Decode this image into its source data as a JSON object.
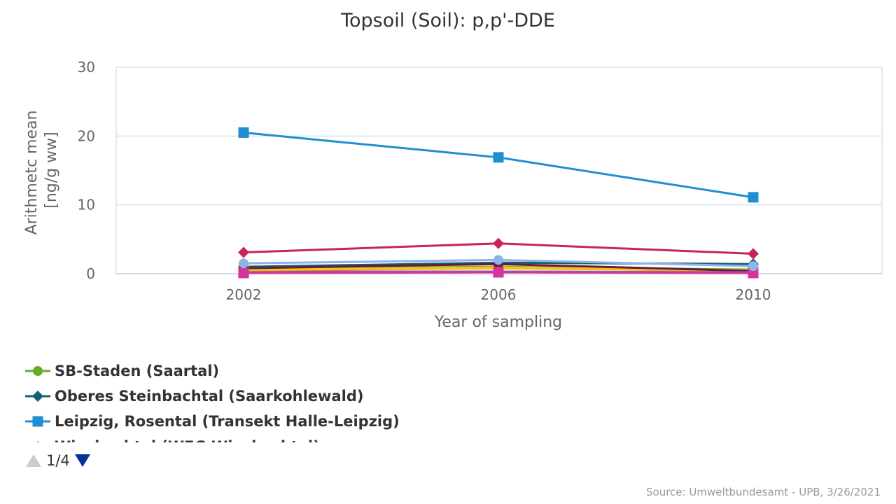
{
  "chart_data": {
    "type": "line",
    "title": "Topsoil (Soil): p,p'-DDE",
    "xlabel": "Year of sampling",
    "ylabel": [
      "Arithmetc mean",
      "[ng/g ww]"
    ],
    "x": [
      "2002",
      "2006",
      "2010"
    ],
    "yticks": [
      "0",
      "10",
      "20",
      "30"
    ],
    "ylim": [
      0,
      30
    ],
    "grid": true,
    "legend_placement": "bottom-left",
    "series": [
      {
        "name": "SB-Staden (Saartal)",
        "color": "#6aaa2a",
        "marker": "circle",
        "values": [
          0.7,
          1.0,
          0.6
        ]
      },
      {
        "name": "Oberes Steinbachtal (Saarkohlewald)",
        "color": "#145f73",
        "marker": "diamond",
        "values": [
          1.0,
          1.6,
          1.4
        ]
      },
      {
        "name": "Leipzig, Rosental (Transekt Halle-Leipzig)",
        "color": "#1f8fd1",
        "marker": "square",
        "values": [
          20.5,
          16.9,
          11.1
        ]
      },
      {
        "color": "#b0347f",
        "marker": "triangle",
        "values": [
          0.3,
          0.3,
          0.2
        ]
      },
      {
        "color": "#c8235f",
        "marker": "diamond",
        "values": [
          3.1,
          4.4,
          2.9
        ]
      },
      {
        "color": "#e8a317",
        "marker": "square",
        "values": [
          0.5,
          0.8,
          0.4
        ]
      },
      {
        "color": "#f2c811",
        "marker": "circle",
        "values": [
          0.6,
          0.9,
          0.5
        ]
      },
      {
        "color": "#6b1a3a",
        "marker": "circle",
        "values": [
          0.8,
          1.4,
          0.4
        ]
      },
      {
        "color": "#8a5fb5",
        "marker": "circle",
        "values": [
          0.2,
          0.3,
          0.2
        ]
      },
      {
        "color": "#d4349c",
        "marker": "square",
        "values": [
          0.1,
          0.2,
          0.1
        ]
      },
      {
        "color": "#8db3e8",
        "marker": "circle",
        "values": [
          1.5,
          2.0,
          1.1
        ]
      }
    ]
  },
  "legend": {
    "visible_items": [
      {
        "label": "SB-Staden (Saartal)",
        "color": "#6aaa2a",
        "marker": "circle"
      },
      {
        "label": "Oberes Steinbachtal (Saarkohlewald)",
        "color": "#145f73",
        "marker": "diamond"
      },
      {
        "label": "Leipzig, Rosental (Transekt Halle-Leipzig)",
        "color": "#1f8fd1",
        "marker": "square"
      },
      {
        "label": "Wiesbachtal (WFG Wiesbachtal)",
        "color": "#b0347f",
        "marker": "triangle"
      }
    ],
    "page_indicator": "1/4",
    "nav_up_icon": "triangle-up-icon",
    "nav_down_icon": "triangle-down-icon",
    "nav_up_color": "#cccccc",
    "nav_down_color": "#003399"
  },
  "credits": "Source: Umweltbundesamt - UPB, 3/26/2021"
}
